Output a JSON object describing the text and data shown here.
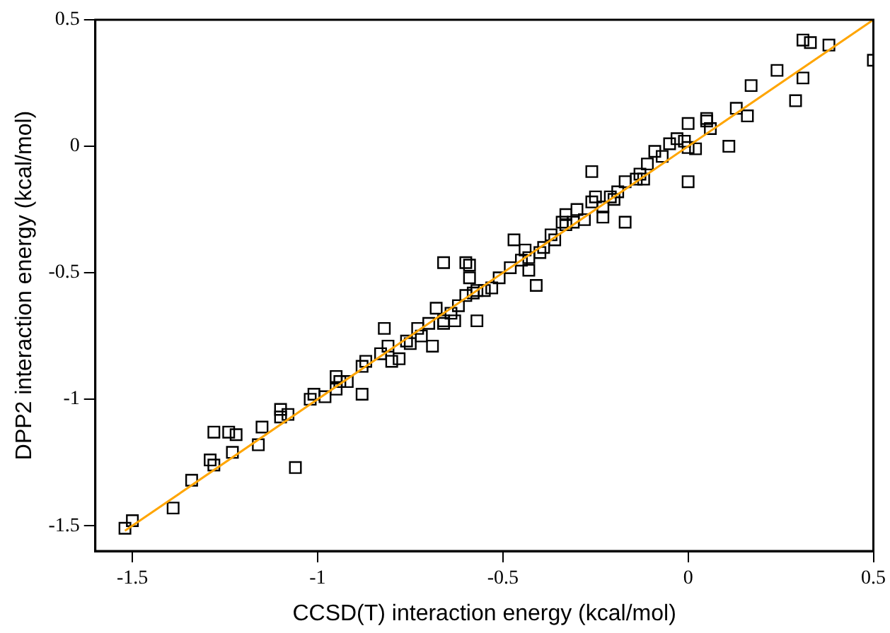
{
  "chart_data": {
    "type": "scatter",
    "xlabel": "CCSD(T) interaction energy (kcal/mol)",
    "ylabel": "DPP2 interaction energy (kcal/mol)",
    "xlim": [
      -1.6,
      0.5
    ],
    "ylim": [
      -1.6,
      0.5
    ],
    "xticks": [
      -1.5,
      -1,
      -0.5,
      0,
      0.5
    ],
    "yticks": [
      -1.5,
      -1,
      -0.5,
      0,
      0.5
    ],
    "grid": false,
    "legend": false,
    "series": [
      {
        "type": "scatter",
        "marker": "square",
        "color": "#000000",
        "x": [
          -1.52,
          -1.5,
          -1.39,
          -1.34,
          -1.29,
          -1.28,
          -1.28,
          -1.24,
          -1.22,
          -1.23,
          -1.16,
          -1.15,
          -1.1,
          -1.06,
          -1.08,
          -1.1,
          -1.02,
          -1.01,
          -0.95,
          -0.94,
          -0.88,
          -0.95,
          -0.88,
          -0.87,
          -0.81,
          -0.83,
          -0.82,
          -0.78,
          -0.8,
          -0.75,
          -0.72,
          -0.7,
          -0.69,
          -0.66,
          -0.68,
          -0.66,
          -0.63,
          -0.62,
          -0.66,
          -0.6,
          -0.59,
          -0.59,
          -0.58,
          -0.6,
          -0.57,
          -0.57,
          -0.53,
          -0.51,
          -0.48,
          -0.45,
          -0.43,
          -0.47,
          -0.44,
          -0.41,
          -0.4,
          -0.43,
          -0.39,
          -0.37,
          -0.34,
          -0.33,
          -0.33,
          -0.31,
          -0.3,
          -0.26,
          -0.26,
          -0.25,
          -0.23,
          -0.21,
          -0.23,
          -0.19,
          -0.17,
          -0.17,
          -0.14,
          -0.13,
          -0.11,
          -0.09,
          -0.05,
          -0.03,
          -0.01,
          0.02,
          0,
          -0.07,
          0,
          0.06,
          0.05,
          0.11,
          0.16,
          0.13,
          0.17,
          0.24,
          0.29,
          0.31,
          0.31,
          0.33,
          0.38,
          0.5,
          0,
          0.05,
          -0.76,
          -0.73,
          -0.64,
          -0.55,
          -0.36,
          -0.28,
          -0.2,
          -0.12,
          -0.92,
          -0.98
        ],
        "values": [
          -1.51,
          -1.48,
          -1.43,
          -1.32,
          -1.24,
          -1.26,
          -1.13,
          -1.13,
          -1.14,
          -1.21,
          -1.18,
          -1.11,
          -1.04,
          -1.27,
          -1.06,
          -1.07,
          -1,
          -0.98,
          -0.96,
          -0.93,
          -0.98,
          -0.91,
          -0.87,
          -0.85,
          -0.79,
          -0.82,
          -0.72,
          -0.84,
          -0.85,
          -0.78,
          -0.75,
          -0.7,
          -0.79,
          -0.7,
          -0.64,
          -0.69,
          -0.69,
          -0.63,
          -0.46,
          -0.46,
          -0.47,
          -0.52,
          -0.58,
          -0.59,
          -0.69,
          -0.57,
          -0.56,
          -0.52,
          -0.48,
          -0.45,
          -0.44,
          -0.37,
          -0.41,
          -0.55,
          -0.42,
          -0.49,
          -0.4,
          -0.35,
          -0.3,
          -0.31,
          -0.27,
          -0.3,
          -0.25,
          -0.22,
          -0.1,
          -0.2,
          -0.24,
          -0.2,
          -0.28,
          -0.18,
          -0.3,
          -0.14,
          -0.13,
          -0.11,
          -0.07,
          -0.02,
          0.01,
          0.03,
          0.02,
          -0.01,
          -0.005,
          -0.04,
          -0.14,
          0.07,
          0.1,
          0,
          0.12,
          0.15,
          0.24,
          0.3,
          0.18,
          0.27,
          0.42,
          0.41,
          0.4,
          0.34,
          0.09,
          0.11,
          -0.77,
          -0.72,
          -0.66,
          -0.57,
          -0.37,
          -0.29,
          -0.21,
          -0.13,
          -0.93,
          -0.99
        ]
      },
      {
        "type": "line",
        "marker": "none",
        "color": "#ffa500",
        "x": [
          -1.52,
          0.5
        ],
        "values": [
          -1.52,
          0.5
        ]
      }
    ]
  }
}
